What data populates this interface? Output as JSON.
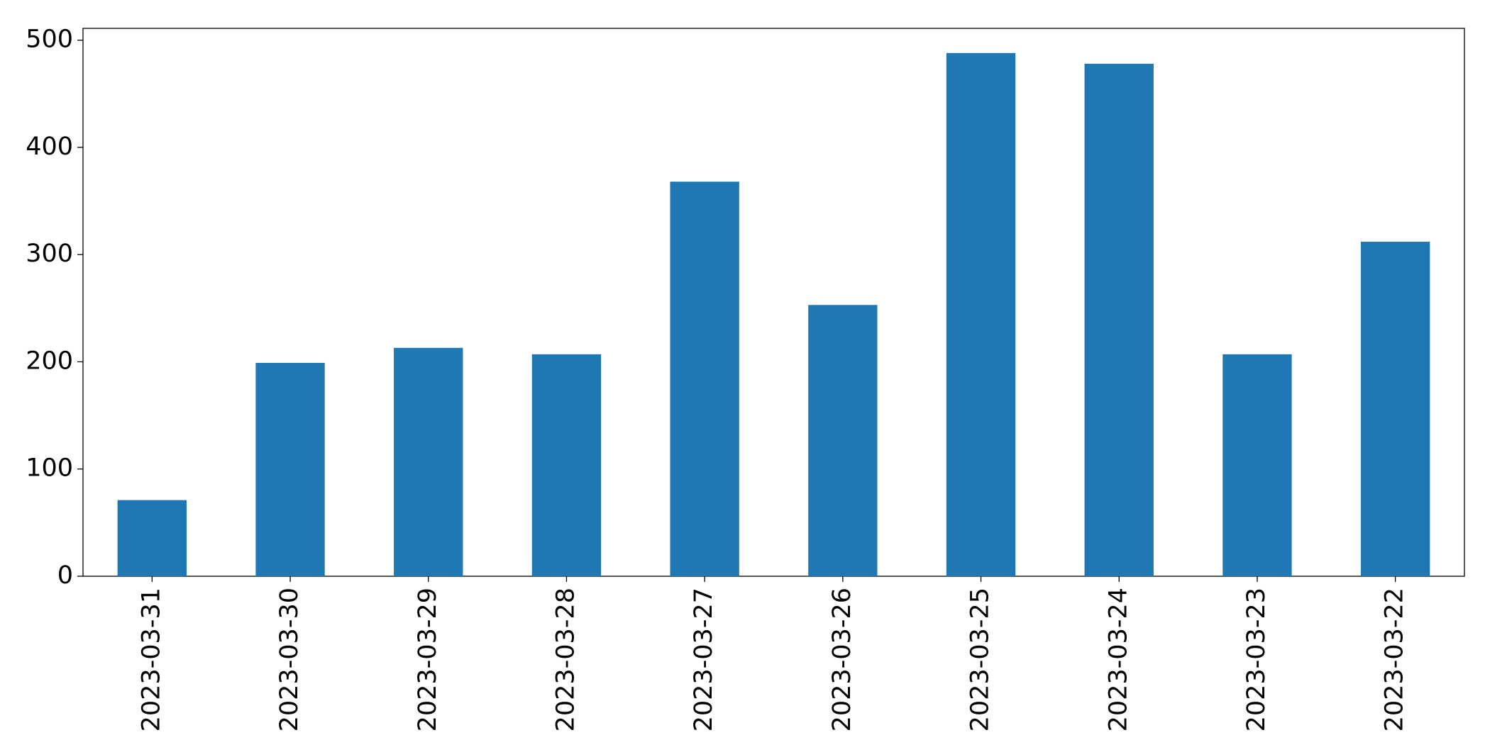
{
  "chart_data": {
    "type": "bar",
    "categories": [
      "2023-03-31",
      "2023-03-30",
      "2023-03-29",
      "2023-03-28",
      "2023-03-27",
      "2023-03-26",
      "2023-03-25",
      "2023-03-24",
      "2023-03-23",
      "2023-03-22"
    ],
    "values": [
      71,
      199,
      213,
      207,
      368,
      253,
      488,
      478,
      207,
      312
    ],
    "color": "#1f77b4",
    "ylim": [
      0,
      511
    ],
    "yticks": [
      0,
      100,
      200,
      300,
      400,
      500
    ],
    "grid": false
  }
}
